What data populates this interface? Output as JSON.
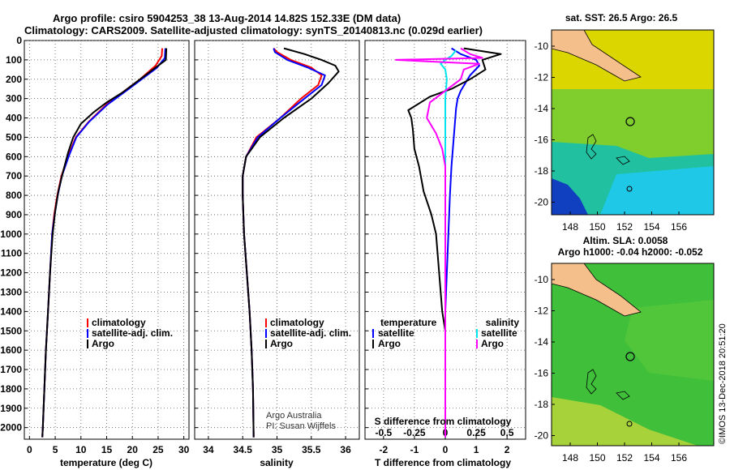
{
  "header": {
    "line1": "Argo profile: csiro 5904253_38 13-Aug-2014 14.82S 152.33E (DM data)",
    "line2": "Climatology: CARS2009. Satellite-adjusted climatology: synTS_20140813.nc (0.029d earlier)"
  },
  "colors": {
    "climatology": "#ff0000",
    "satellite": "#0000ff",
    "argo": "#000000",
    "sat_salinity": "#00e5ee",
    "argo_salinity_diff": "#ff00ff"
  },
  "chart_data": [
    {
      "type": "line",
      "xlabel": "temperature (deg C)",
      "xlim": [
        -1,
        31
      ],
      "xticks": [
        0,
        5,
        10,
        15,
        20,
        25,
        30
      ],
      "ylim": [
        2060,
        0
      ],
      "yticks": [
        0,
        100,
        200,
        300,
        400,
        500,
        600,
        700,
        800,
        900,
        1000,
        1100,
        1200,
        1300,
        1400,
        1500,
        1600,
        1700,
        1800,
        1900,
        2000
      ],
      "grid": true,
      "legend_position": "lower-right",
      "series": [
        {
          "name": "climatology",
          "color": "#ff0000",
          "points": [
            [
              25.8,
              40
            ],
            [
              25.7,
              80
            ],
            [
              24.5,
              130
            ],
            [
              21.5,
              200
            ],
            [
              18.5,
              260
            ],
            [
              15,
              330
            ],
            [
              11.5,
              420
            ],
            [
              9,
              500
            ],
            [
              7.5,
              600
            ],
            [
              6.2,
              700
            ],
            [
              5.4,
              800
            ],
            [
              4.8,
              900
            ],
            [
              4.4,
              1000
            ],
            [
              4,
              1200
            ],
            [
              3.6,
              1400
            ],
            [
              3.2,
              1600
            ],
            [
              2.9,
              1800
            ],
            [
              2.6,
              2000
            ],
            [
              2.5,
              2050
            ]
          ]
        },
        {
          "name": "satellite-adj. clim.",
          "color": "#0000ff",
          "points": [
            [
              26.4,
              40
            ],
            [
              26.3,
              90
            ],
            [
              24.8,
              140
            ],
            [
              21.8,
              200
            ],
            [
              18.8,
              260
            ],
            [
              15.2,
              330
            ],
            [
              11.6,
              420
            ],
            [
              9.1,
              500
            ],
            [
              7.6,
              600
            ],
            [
              6.3,
              700
            ],
            [
              5.5,
              800
            ],
            [
              4.9,
              900
            ],
            [
              4.4,
              1000
            ],
            [
              4,
              1200
            ],
            [
              3.6,
              1400
            ],
            [
              3.2,
              1600
            ],
            [
              2.9,
              1800
            ],
            [
              2.6,
              2000
            ],
            [
              2.5,
              2050
            ]
          ]
        },
        {
          "name": "Argo",
          "color": "#000000",
          "points": [
            [
              26.6,
              40
            ],
            [
              26.5,
              100
            ],
            [
              24,
              150
            ],
            [
              21,
              210
            ],
            [
              18,
              270
            ],
            [
              15,
              320
            ],
            [
              12.5,
              370
            ],
            [
              10,
              430
            ],
            [
              8.5,
              500
            ],
            [
              7.5,
              580
            ],
            [
              6.5,
              680
            ],
            [
              5.6,
              780
            ],
            [
              5,
              880
            ],
            [
              4.5,
              1000
            ],
            [
              4,
              1200
            ],
            [
              3.6,
              1400
            ],
            [
              3.2,
              1600
            ],
            [
              2.9,
              1800
            ],
            [
              2.6,
              2000
            ],
            [
              2.5,
              2050
            ]
          ]
        }
      ]
    },
    {
      "type": "line",
      "xlabel": "salinity",
      "xlim": [
        33.8,
        36.2
      ],
      "xticks": [
        34,
        34.5,
        35,
        35.5,
        36
      ],
      "xticklabels": [
        "34",
        "34.5",
        "35",
        "35.5",
        "36"
      ],
      "ylim": [
        2060,
        0
      ],
      "grid": true,
      "legend_position": "lower-right",
      "annotations": [
        "Argo Australia",
        "PI: Susan Wijffels"
      ],
      "series": [
        {
          "name": "climatology",
          "color": "#ff0000",
          "points": [
            [
              34.95,
              40
            ],
            [
              35,
              60
            ],
            [
              35.2,
              100
            ],
            [
              35.5,
              140
            ],
            [
              35.65,
              180
            ],
            [
              35.6,
              230
            ],
            [
              35.35,
              300
            ],
            [
              35.05,
              400
            ],
            [
              34.7,
              500
            ],
            [
              34.55,
              600
            ],
            [
              34.5,
              700
            ],
            [
              34.5,
              800
            ],
            [
              34.52,
              1000
            ],
            [
              34.56,
              1200
            ],
            [
              34.6,
              1400
            ],
            [
              34.63,
              1600
            ],
            [
              34.65,
              1800
            ],
            [
              34.66,
              2050
            ]
          ]
        },
        {
          "name": "satellite-adj. clim.",
          "color": "#0000ff",
          "points": [
            [
              34.95,
              40
            ],
            [
              34.97,
              60
            ],
            [
              35.15,
              100
            ],
            [
              35.45,
              140
            ],
            [
              35.7,
              180
            ],
            [
              35.65,
              230
            ],
            [
              35.4,
              300
            ],
            [
              35.05,
              400
            ],
            [
              34.72,
              500
            ],
            [
              34.55,
              600
            ],
            [
              34.5,
              700
            ],
            [
              34.5,
              800
            ],
            [
              34.52,
              1000
            ],
            [
              34.56,
              1200
            ],
            [
              34.6,
              1400
            ],
            [
              34.63,
              1600
            ],
            [
              34.65,
              1800
            ],
            [
              34.66,
              2050
            ]
          ]
        },
        {
          "name": "Argo",
          "color": "#000000",
          "points": [
            [
              35.1,
              40
            ],
            [
              35.4,
              70
            ],
            [
              35.65,
              100
            ],
            [
              35.85,
              130
            ],
            [
              35.9,
              160
            ],
            [
              35.75,
              220
            ],
            [
              35.5,
              300
            ],
            [
              35.1,
              400
            ],
            [
              34.75,
              500
            ],
            [
              34.55,
              600
            ],
            [
              34.5,
              700
            ],
            [
              34.5,
              800
            ],
            [
              34.52,
              1000
            ],
            [
              34.56,
              1200
            ],
            [
              34.6,
              1400
            ],
            [
              34.63,
              1600
            ],
            [
              34.65,
              1800
            ],
            [
              34.66,
              2050
            ]
          ]
        }
      ]
    },
    {
      "type": "line",
      "xlabel": "T difference from climatology",
      "xlabel_top": "S difference from climatology",
      "xlim": [
        -2.6,
        2.6
      ],
      "xticks": [
        -2,
        -1,
        0,
        1,
        2
      ],
      "xticks_top": [
        -0.5,
        -0.25,
        0,
        0.25,
        0.5
      ],
      "xticklabels_top": [
        "-0.5",
        "-0.25",
        "0",
        "0.25",
        "0.5"
      ],
      "ylim": [
        2060,
        0
      ],
      "grid": true,
      "legend_left_title": "temperature",
      "legend_right_title": "salinity",
      "series": [
        {
          "name": "satellite",
          "group": "temperature",
          "color": "#0000ff",
          "points": [
            [
              0.2,
              40
            ],
            [
              0.5,
              70
            ],
            [
              1,
              100
            ],
            [
              1.1,
              130
            ],
            [
              0.8,
              180
            ],
            [
              0.5,
              260
            ],
            [
              0.4,
              300
            ],
            [
              0.35,
              350
            ],
            [
              0.3,
              450
            ],
            [
              0.25,
              550
            ],
            [
              0.2,
              650
            ],
            [
              0.15,
              800
            ],
            [
              0.1,
              1000
            ],
            [
              0.05,
              1200
            ],
            [
              0,
              1400
            ],
            [
              0,
              2050
            ]
          ]
        },
        {
          "name": "Argo",
          "group": "temperature",
          "color": "#000000",
          "points": [
            [
              0.6,
              40
            ],
            [
              1.8,
              70
            ],
            [
              1.2,
              100
            ],
            [
              1.3,
              150
            ],
            [
              0.8,
              200
            ],
            [
              0.2,
              250
            ],
            [
              -0.5,
              290
            ],
            [
              -1.2,
              360
            ],
            [
              -1.1,
              400
            ],
            [
              -1.05,
              460
            ],
            [
              -1,
              560
            ],
            [
              -0.85,
              650
            ],
            [
              -0.7,
              780
            ],
            [
              -0.45,
              900
            ],
            [
              -0.3,
              1000
            ],
            [
              -0.2,
              1200
            ],
            [
              -0.1,
              1400
            ],
            [
              0,
              1500
            ],
            [
              0,
              2050
            ]
          ]
        },
        {
          "name": "satellite",
          "group": "salinity",
          "color": "#00e5ee",
          "points": [
            [
              0.35,
              50
            ],
            [
              0.2,
              80
            ],
            [
              0,
              100
            ],
            [
              -0.15,
              120
            ],
            [
              0,
              150
            ],
            [
              0.05,
              200
            ],
            [
              0,
              300
            ],
            [
              0,
              2050
            ]
          ]
        },
        {
          "name": "Argo",
          "group": "salinity",
          "color": "#ff00ff",
          "points": [
            [
              0.5,
              40
            ],
            [
              0.8,
              70
            ],
            [
              1.2,
              90
            ],
            [
              -1.6,
              100
            ],
            [
              1.1,
              120
            ],
            [
              0.6,
              150
            ],
            [
              0.5,
              200
            ],
            [
              0,
              260
            ],
            [
              -0.5,
              320
            ],
            [
              -0.6,
              400
            ],
            [
              -0.3,
              480
            ],
            [
              -0.1,
              560
            ],
            [
              0,
              650
            ],
            [
              0,
              2050
            ]
          ]
        }
      ]
    }
  ],
  "maps": {
    "top_title": "sat. SST: 26.5 Argo: 26.5",
    "bottom_title_1": "Altim. SLA: 0.0058",
    "bottom_title_2": "Argo h1000: -0.04 h2000: -0.052",
    "lon_ticks": [
      "148",
      "150",
      "152",
      "154",
      "156"
    ],
    "lat_ticks": [
      "-10",
      "-12",
      "-14",
      "-16",
      "-18",
      "-20"
    ],
    "marker_lon": 152.33,
    "marker_lat": -14.82
  },
  "credit": "©IMOS 13-Dec-2018 20:51:20"
}
